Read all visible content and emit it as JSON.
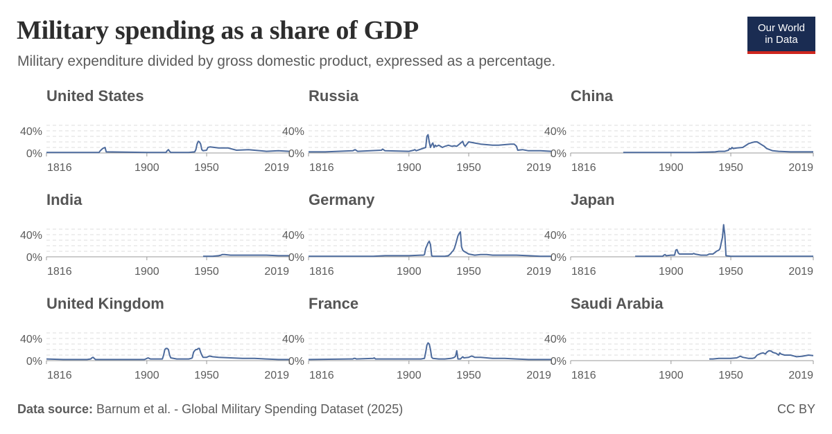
{
  "header": {
    "title": "Military spending as a share of GDP",
    "subtitle": "Military expenditure divided by gross domestic product, expressed as a percentage."
  },
  "logo": {
    "line1": "Our World",
    "line2": "in Data"
  },
  "footer": {
    "source_label": "Data source:",
    "source_text": " Barnum et al. - Global Military Spending Dataset (2025)",
    "license": "CC BY"
  },
  "colors": {
    "series": "#4c6a9c",
    "logo_bg": "#1a2c52",
    "logo_accent": "#ce261e"
  },
  "chart_data": {
    "type": "line",
    "layout": "small-multiples",
    "xlim": [
      1816,
      2019
    ],
    "ylim": [
      0,
      50
    ],
    "x_ticks": [
      1816,
      1900,
      1950,
      2019
    ],
    "x_tick_labels": [
      "1816",
      "1900",
      "1950",
      "2019"
    ],
    "y_ticks": [
      0,
      40
    ],
    "y_tick_labels": [
      "0%",
      "40%"
    ],
    "grid": true,
    "panels": [
      {
        "name": "United States",
        "x": [
          1816,
          1860,
          1861,
          1863,
          1865,
          1866,
          1900,
          1916,
          1917,
          1918,
          1919,
          1920,
          1935,
          1940,
          1941,
          1942,
          1943,
          1944,
          1945,
          1946,
          1947,
          1950,
          1951,
          1953,
          1960,
          1968,
          1975,
          1985,
          1990,
          2000,
          2010,
          2019
        ],
        "y": [
          1,
          1,
          4,
          8,
          10,
          2,
          1,
          1,
          4,
          6,
          3,
          1,
          1,
          2,
          6,
          16,
          21,
          20,
          16,
          6,
          4,
          5,
          10,
          11,
          9,
          9,
          5,
          6,
          5,
          3,
          4,
          3
        ]
      },
      {
        "name": "Russia",
        "x": [
          1816,
          1830,
          1853,
          1855,
          1857,
          1877,
          1878,
          1880,
          1900,
          1904,
          1905,
          1906,
          1914,
          1915,
          1916,
          1917,
          1918,
          1919,
          1920,
          1921,
          1922,
          1923,
          1925,
          1928,
          1930,
          1933,
          1936,
          1938,
          1940,
          1945,
          1946,
          1947,
          1950,
          1955,
          1960,
          1965,
          1970,
          1975,
          1980,
          1985,
          1988,
          1990,
          1991,
          1995,
          2000,
          2010,
          2019
        ],
        "y": [
          2,
          2,
          4,
          6,
          3,
          5,
          7,
          4,
          3,
          5,
          6,
          4,
          10,
          30,
          33,
          20,
          10,
          15,
          18,
          10,
          14,
          12,
          14,
          10,
          12,
          14,
          12,
          13,
          12,
          21,
          15,
          12,
          20,
          18,
          16,
          15,
          14,
          14,
          15,
          16,
          16,
          12,
          5,
          6,
          4,
          4,
          3
        ]
      },
      {
        "name": "China",
        "x": [
          1860,
          1880,
          1900,
          1920,
          1937,
          1940,
          1945,
          1948,
          1949,
          1950,
          1951,
          1952,
          1955,
          1960,
          1965,
          1968,
          1970,
          1972,
          1975,
          1978,
          1980,
          1985,
          1990,
          2000,
          2010,
          2019
        ],
        "y": [
          1,
          1,
          1,
          1,
          2,
          3,
          3,
          5,
          8,
          7,
          10,
          8,
          9,
          10,
          17,
          19,
          20,
          20,
          16,
          12,
          8,
          4,
          3,
          2,
          2,
          2
        ]
      },
      {
        "name": "India",
        "x": [
          1947,
          1950,
          1955,
          1960,
          1962,
          1963,
          1965,
          1970,
          1975,
          1980,
          1985,
          1990,
          2000,
          2010,
          2019
        ],
        "y": [
          1,
          1,
          1,
          2,
          3,
          4,
          4,
          3,
          3,
          3,
          3,
          3,
          3,
          2,
          2
        ]
      },
      {
        "name": "Germany",
        "x": [
          1816,
          1850,
          1870,
          1880,
          1900,
          1910,
          1912,
          1913,
          1914,
          1915,
          1916,
          1917,
          1918,
          1919,
          1920,
          1925,
          1930,
          1933,
          1935,
          1936,
          1937,
          1938,
          1939,
          1940,
          1941,
          1942,
          1943,
          1944,
          1945,
          1946,
          1950,
          1955,
          1960,
          1965,
          1970,
          1980,
          1990,
          2000,
          2010,
          2019
        ],
        "y": [
          1,
          1,
          1,
          2,
          2,
          3,
          3,
          4,
          15,
          20,
          25,
          28,
          22,
          2,
          1,
          1,
          1,
          2,
          6,
          9,
          11,
          15,
          22,
          30,
          38,
          42,
          45,
          18,
          12,
          10,
          5,
          3,
          4,
          4,
          3,
          3,
          3,
          2,
          1,
          1
        ]
      },
      {
        "name": "Japan",
        "x": [
          1870,
          1880,
          1890,
          1893,
          1894,
          1895,
          1896,
          1900,
          1902,
          1903,
          1904,
          1905,
          1906,
          1907,
          1910,
          1918,
          1919,
          1920,
          1925,
          1930,
          1931,
          1932,
          1935,
          1937,
          1938,
          1940,
          1941,
          1942,
          1943,
          1944,
          1945,
          1946,
          1950,
          1960,
          1970,
          1980,
          1990,
          2000,
          2010,
          2019
        ],
        "y": [
          1,
          1,
          1,
          1,
          3,
          4,
          2,
          3,
          3,
          3,
          12,
          13,
          7,
          5,
          5,
          5,
          6,
          5,
          3,
          3,
          4,
          5,
          5,
          8,
          10,
          12,
          15,
          25,
          35,
          58,
          40,
          2,
          1,
          1,
          1,
          1,
          1,
          1,
          1,
          1
        ]
      },
      {
        "name": "United Kingdom",
        "x": [
          1816,
          1830,
          1850,
          1853,
          1854,
          1855,
          1856,
          1857,
          1880,
          1898,
          1899,
          1900,
          1901,
          1902,
          1903,
          1910,
          1913,
          1914,
          1915,
          1916,
          1917,
          1918,
          1919,
          1920,
          1925,
          1935,
          1937,
          1938,
          1939,
          1940,
          1941,
          1942,
          1943,
          1944,
          1945,
          1946,
          1947,
          1950,
          1952,
          1953,
          1955,
          1960,
          1970,
          1980,
          1990,
          2000,
          2010,
          2019
        ],
        "y": [
          3,
          2,
          2,
          3,
          5,
          6,
          4,
          2,
          2,
          2,
          3,
          4,
          5,
          4,
          3,
          3,
          3,
          10,
          20,
          22,
          22,
          20,
          10,
          5,
          3,
          3,
          4,
          5,
          15,
          18,
          20,
          20,
          22,
          22,
          15,
          10,
          6,
          6,
          8,
          8,
          7,
          6,
          5,
          4,
          4,
          3,
          2,
          2
        ]
      },
      {
        "name": "France",
        "x": [
          1816,
          1850,
          1853,
          1854,
          1855,
          1856,
          1870,
          1871,
          1872,
          1900,
          1910,
          1913,
          1914,
          1915,
          1916,
          1917,
          1918,
          1919,
          1920,
          1925,
          1930,
          1935,
          1937,
          1938,
          1939,
          1940,
          1941,
          1942,
          1943,
          1944,
          1945,
          1946,
          1950,
          1952,
          1953,
          1955,
          1960,
          1970,
          1980,
          1990,
          2000,
          2010,
          2019
        ],
        "y": [
          2,
          3,
          3,
          4,
          4,
          3,
          4,
          5,
          3,
          3,
          3,
          4,
          15,
          28,
          32,
          30,
          20,
          6,
          4,
          3,
          3,
          4,
          5,
          6,
          8,
          18,
          3,
          3,
          3,
          5,
          7,
          5,
          6,
          8,
          8,
          6,
          6,
          4,
          4,
          3,
          2,
          2,
          2
        ]
      },
      {
        "name": "Saudi Arabia",
        "x": [
          1932,
          1935,
          1940,
          1945,
          1950,
          1955,
          1957,
          1958,
          1960,
          1965,
          1968,
          1970,
          1972,
          1975,
          1977,
          1979,
          1980,
          1982,
          1984,
          1985,
          1988,
          1990,
          1991,
          1992,
          1995,
          2000,
          2005,
          2010,
          2015,
          2019
        ],
        "y": [
          3,
          3,
          4,
          4,
          4,
          5,
          7,
          8,
          6,
          4,
          4,
          5,
          10,
          13,
          14,
          12,
          15,
          18,
          17,
          15,
          13,
          10,
          14,
          12,
          10,
          10,
          7,
          8,
          10,
          9
        ]
      }
    ]
  }
}
